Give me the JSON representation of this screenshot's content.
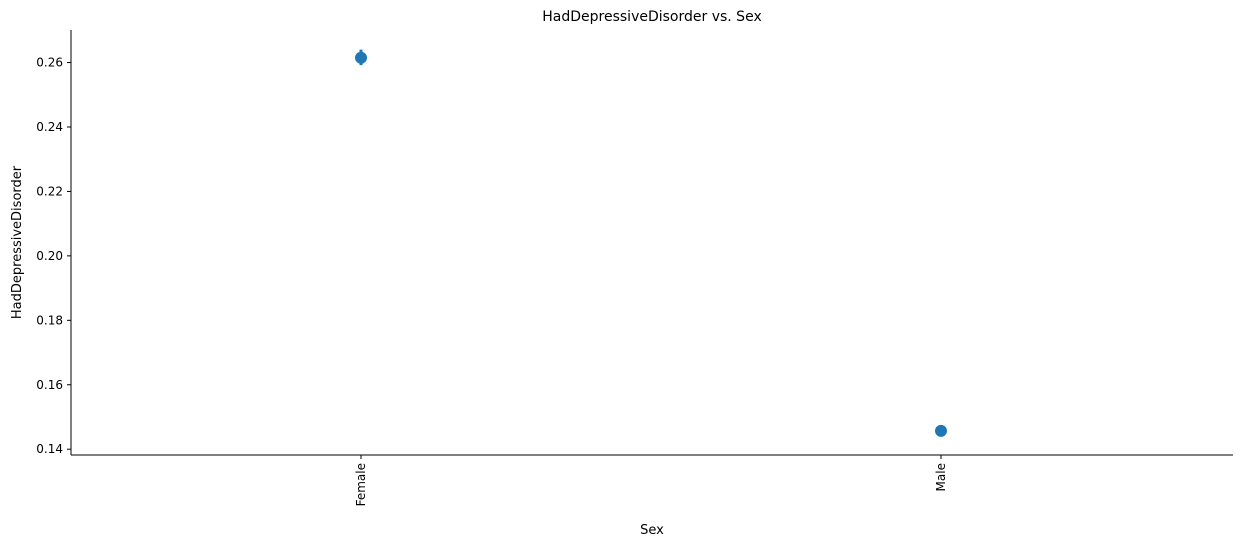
{
  "chart_data": {
    "type": "scatter",
    "title": "HadDepressiveDisorder vs. Sex",
    "xlabel": "Sex",
    "ylabel": "HadDepressiveDisorder",
    "categories": [
      "Female",
      "Male"
    ],
    "values": [
      0.2615,
      0.1457
    ],
    "error_low": [
      0.2592,
      0.144
    ],
    "error_high": [
      0.264,
      0.1475
    ],
    "ylim": [
      0.1382,
      0.2701
    ],
    "yticks": [
      0.14,
      0.16,
      0.18,
      0.2,
      0.22,
      0.24,
      0.26
    ],
    "ytick_labels": [
      "0.14",
      "0.16",
      "0.18",
      "0.20",
      "0.22",
      "0.24",
      "0.26"
    ],
    "grid": false,
    "legend": "none",
    "color": "#1f77b4"
  }
}
